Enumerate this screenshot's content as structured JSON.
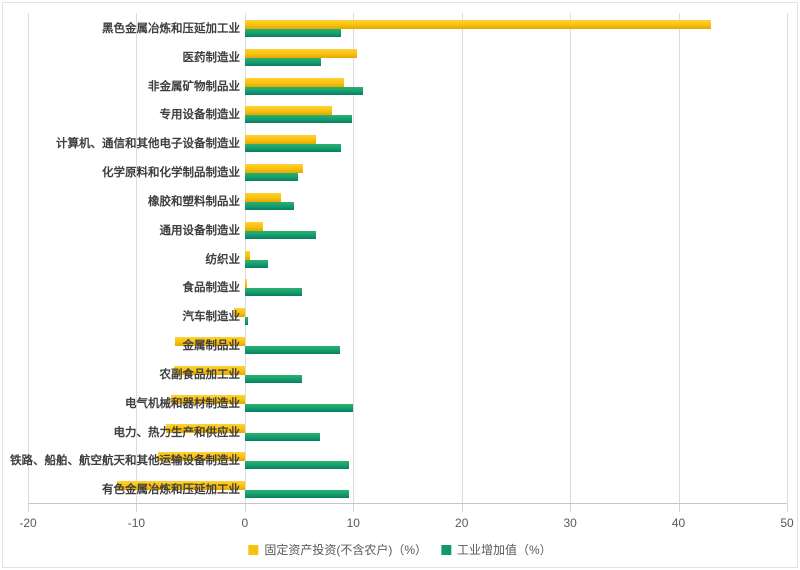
{
  "chart_data": {
    "type": "bar",
    "orientation": "horizontal",
    "title": "",
    "xlabel": "",
    "ylabel": "",
    "xlim": [
      -20,
      50
    ],
    "xticks": [
      -20,
      -10,
      0,
      10,
      20,
      30,
      40,
      50
    ],
    "grid": true,
    "legend_position": "bottom",
    "categories": [
      "黑色金属冶炼和压延加工业",
      "医药制造业",
      "非金属矿物制品业",
      "专用设备制造业",
      "计算机、通信和其他电子设备制造业",
      "化学原料和化学制品制造业",
      "橡胶和塑料制品业",
      "通用设备制造业",
      "纺织业",
      "食品制造业",
      "汽车制造业",
      "金属制品业",
      "农副食品加工业",
      "电气机械和器材制造业",
      "电力、热力生产和供应业",
      "铁路、船舶、航空航天和其他运输设备制造业",
      "有色金属冶炼和压延加工业"
    ],
    "series": [
      {
        "name": "固定资产投资(不含农户)（%）",
        "color": "#f9c010",
        "values": [
          43.0,
          10.3,
          9.1,
          8.0,
          6.6,
          5.4,
          3.3,
          1.7,
          0.5,
          0.2,
          -1.0,
          -6.4,
          -6.5,
          -6.8,
          -7.3,
          -8.0,
          -11.8
        ]
      },
      {
        "name": "工业增加值（%）",
        "color": "#12996b",
        "values": [
          8.9,
          7.0,
          10.9,
          9.9,
          8.9,
          4.9,
          4.5,
          6.6,
          2.1,
          5.3,
          0.3,
          8.8,
          5.3,
          10.0,
          6.9,
          9.6,
          9.6
        ]
      }
    ]
  },
  "colors": {
    "gridline": "#dcdcdc",
    "axis": "#c6c6c6",
    "label_text": "#3f3f3f",
    "tick_text": "#595959",
    "background": "#ffffff"
  }
}
